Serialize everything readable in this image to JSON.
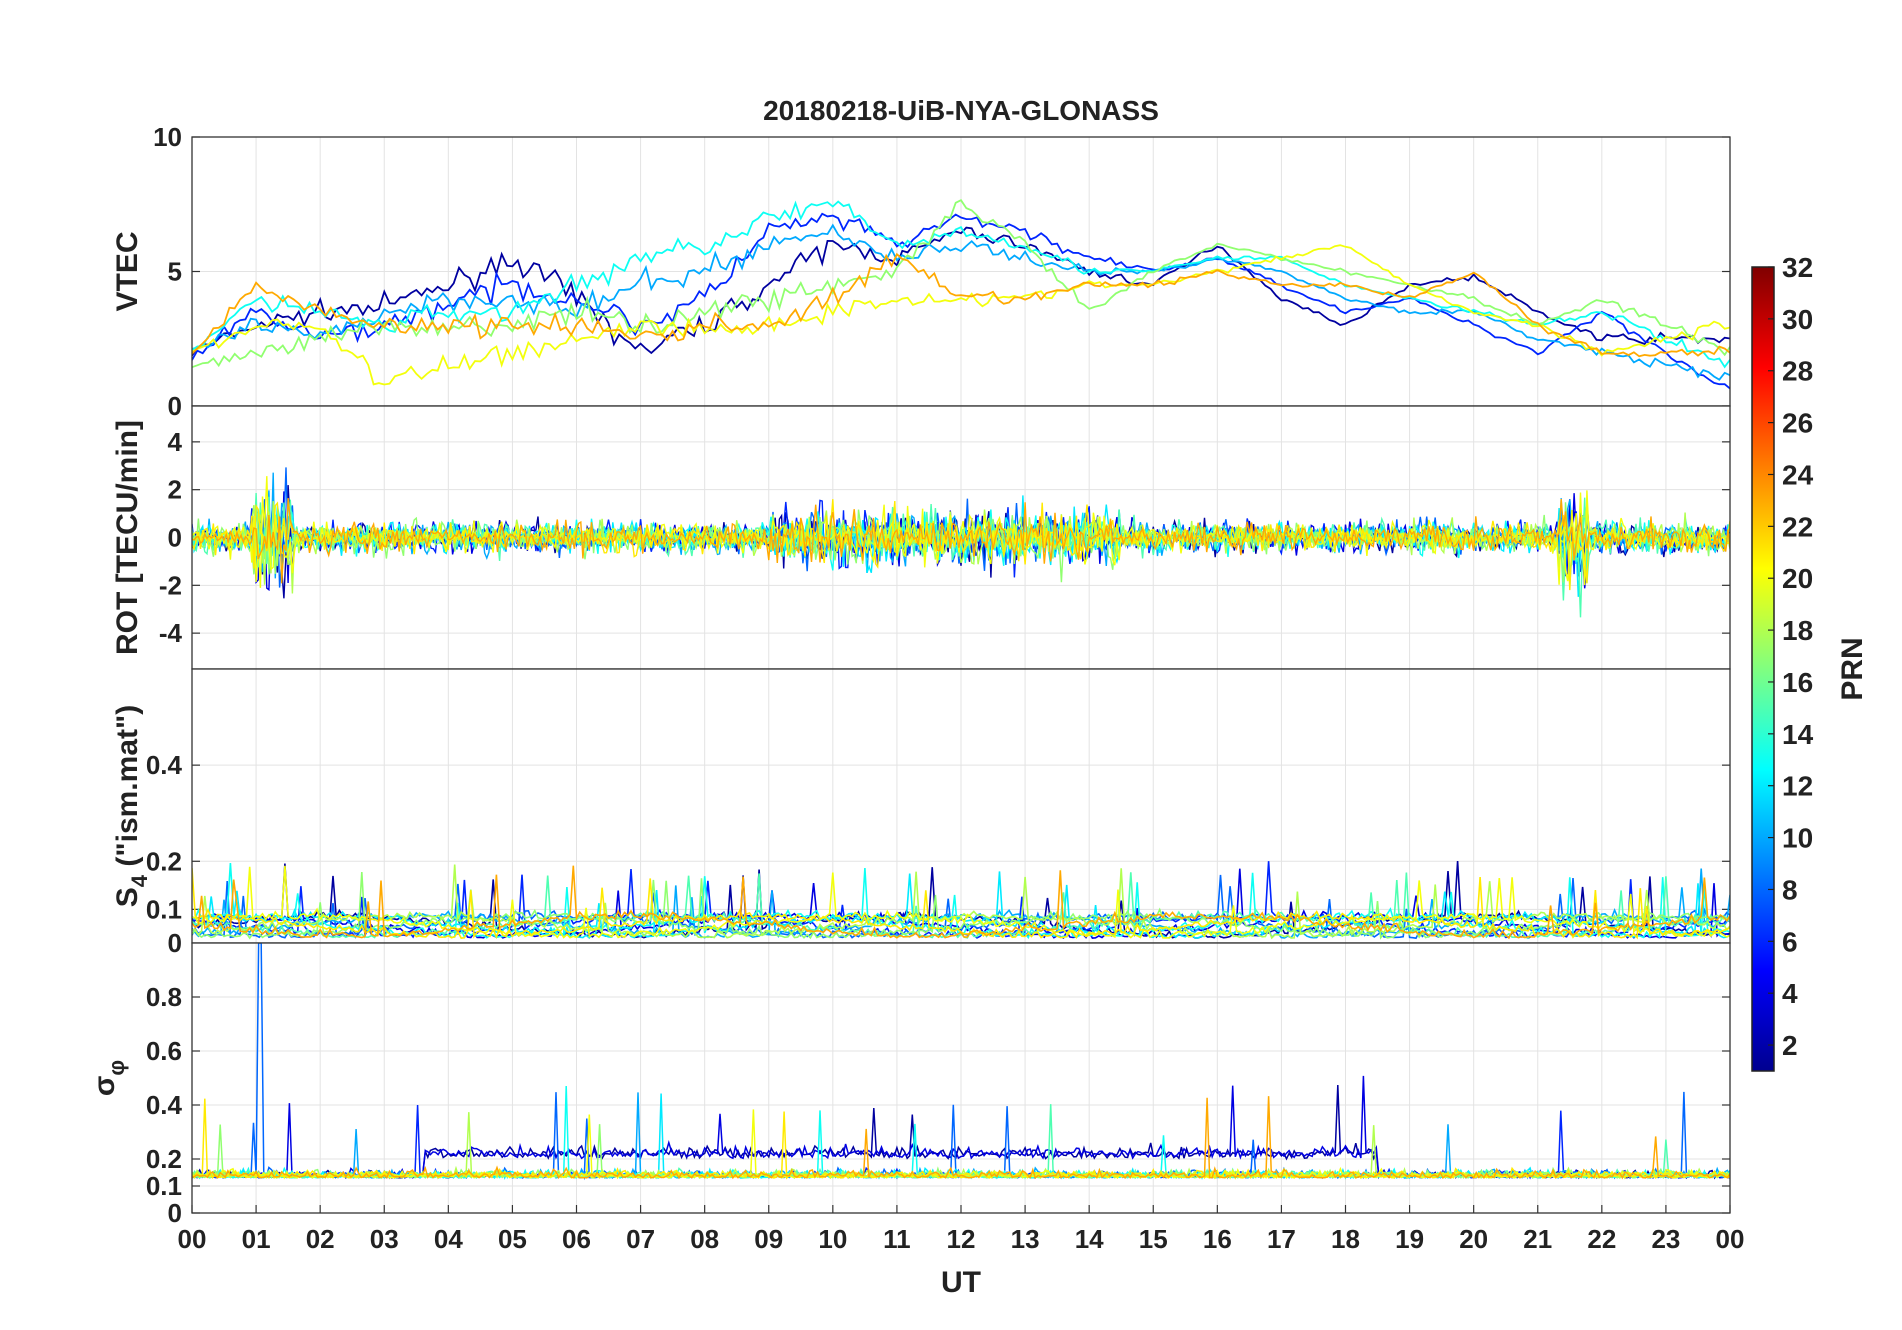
{
  "chart_data": {
    "type": "line",
    "title": "20180218-UiB-NYA-GLONASS",
    "xlabel": "UT",
    "x_ticks": [
      "00",
      "01",
      "02",
      "03",
      "04",
      "05",
      "06",
      "07",
      "08",
      "09",
      "10",
      "11",
      "12",
      "13",
      "14",
      "15",
      "16",
      "17",
      "18",
      "19",
      "20",
      "21",
      "22",
      "23",
      "00"
    ],
    "xlim": [
      0,
      24
    ],
    "colorbar": {
      "label": "PRN",
      "range": [
        1,
        32
      ],
      "ticks": [
        "2",
        "4",
        "6",
        "8",
        "10",
        "12",
        "14",
        "16",
        "18",
        "20",
        "22",
        "24",
        "26",
        "28",
        "30",
        "32"
      ],
      "colormap": "jet"
    },
    "panels": [
      {
        "name": "vtec",
        "ylabel": "VTEC",
        "ylim": [
          0,
          10
        ],
        "yticks": [
          "0",
          "5",
          "10"
        ],
        "series_summary": [
          {
            "prn": 2,
            "values_by_hour": [
              2.0,
              3.0,
              3.5,
              3.7,
              4.5,
              5.5,
              4.0,
              2.0,
              3.0,
              4.5,
              6.0,
              5.5,
              6.5,
              6.0,
              5.0,
              4.5,
              6.0,
              4.0,
              3.0,
              4.5,
              4.8,
              3.5,
              2.5,
              2.5
            ]
          },
          {
            "prn": 6,
            "values_by_hour": [
              1.8,
              3.5,
              2.5,
              3.0,
              3.8,
              4.5,
              4.0,
              3.0,
              4.0,
              6.5,
              7.0,
              6.0,
              7.0,
              6.5,
              5.5,
              5.0,
              5.5,
              4.5,
              3.5,
              4.0,
              3.0,
              2.0,
              3.5,
              2.0
            ]
          },
          {
            "prn": 10,
            "values_by_hour": [
              2.0,
              3.0,
              2.5,
              3.5,
              4.0,
              4.0,
              3.5,
              4.5,
              5.0,
              6.0,
              6.5,
              5.5,
              6.0,
              5.5,
              5.0,
              5.0,
              5.5,
              5.0,
              4.0,
              3.5,
              3.5,
              2.5,
              2.0,
              1.5
            ]
          },
          {
            "prn": 13,
            "values_by_hour": [
              2.0,
              4.0,
              3.5,
              3.0,
              3.5,
              3.5,
              4.5,
              5.5,
              6.0,
              7.0,
              7.5,
              6.0,
              6.5,
              6.0,
              5.0,
              5.0,
              5.5,
              5.5,
              4.5,
              4.0,
              3.5,
              3.0,
              3.5,
              2.5
            ]
          },
          {
            "prn": 17,
            "values_by_hour": [
              1.5,
              2.0,
              2.5,
              3.0,
              3.0,
              3.0,
              3.5,
              3.0,
              3.5,
              4.0,
              4.5,
              5.0,
              7.5,
              6.0,
              3.5,
              5.0,
              6.0,
              5.5,
              5.0,
              4.5,
              4.0,
              3.0,
              4.0,
              3.0
            ]
          },
          {
            "prn": 20,
            "values_by_hour": [
              2.0,
              3.0,
              3.0,
              0.8,
              1.5,
              2.0,
              2.5,
              3.0,
              2.8,
              3.0,
              3.5,
              4.0,
              4.0,
              4.0,
              4.5,
              4.5,
              5.0,
              5.5,
              6.0,
              4.5,
              3.5,
              3.0,
              2.0,
              2.5
            ]
          },
          {
            "prn": 23,
            "values_by_hour": [
              2.0,
              4.5,
              3.5,
              3.0,
              3.0,
              3.0,
              3.0,
              2.5,
              3.0,
              3.0,
              4.0,
              5.5,
              4.0,
              4.0,
              4.5,
              4.5,
              5.0,
              4.5,
              4.5,
              4.0,
              5.0,
              3.0,
              2.0,
              2.0
            ]
          }
        ]
      },
      {
        "name": "rot",
        "ylabel": "ROT [TECU/min]",
        "ylim": [
          -5.5,
          5.5
        ],
        "yticks": [
          "-4",
          "-2",
          "0",
          "2",
          "4"
        ]
      },
      {
        "name": "s4",
        "ylabel": "S4 (\"ism.mat\")",
        "ylabel_main": "S",
        "ylabel_sub": "4",
        "ylabel_rest": " (\"ism.mat\")",
        "ylim": [
          0.03,
          0.6
        ],
        "yticks": [
          "0.1",
          "0.2",
          "0.4"
        ],
        "baseline_tick": "0"
      },
      {
        "name": "sigma_phi",
        "ylabel": "σφ",
        "ylabel_main": "σ",
        "ylabel_sub": "φ",
        "ylim": [
          0,
          1
        ],
        "yticks": [
          "0",
          "0.1",
          "0.2",
          "0.4",
          "0.6",
          "0.8"
        ]
      }
    ]
  }
}
